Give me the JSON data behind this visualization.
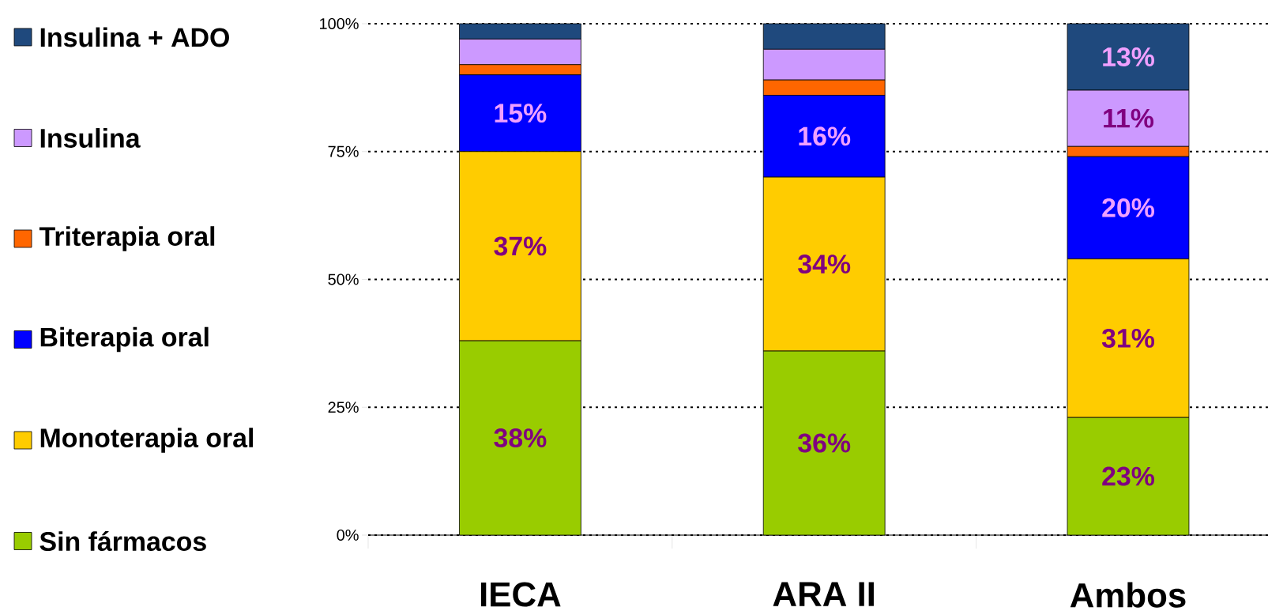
{
  "chart_data": {
    "type": "bar",
    "stacked": true,
    "categories": [
      "IECA",
      "ARA II",
      "Ambos"
    ],
    "series": [
      {
        "name": "Sin fármacos",
        "color": "#99cc00",
        "values": [
          38,
          36,
          23
        ],
        "value_labels": [
          "38%",
          "36%",
          "23%"
        ]
      },
      {
        "name": "Monoterapia oral",
        "color": "#ffcc00",
        "values": [
          37,
          34,
          31
        ],
        "value_labels": [
          "37%",
          "34%",
          "31%"
        ]
      },
      {
        "name": "Biterapia oral",
        "color": "#0000ff",
        "values": [
          15,
          16,
          20
        ],
        "value_labels": [
          "15%",
          "16%",
          "20%"
        ]
      },
      {
        "name": "Triterapia oral",
        "color": "#ff6600",
        "values": [
          2,
          3,
          2
        ],
        "value_labels": [
          null,
          null,
          null
        ]
      },
      {
        "name": "Insulina",
        "color": "#cc99ff",
        "values": [
          5,
          6,
          11
        ],
        "value_labels": [
          null,
          null,
          "11%"
        ]
      },
      {
        "name": "Insulina + ADO",
        "color": "#1f497d",
        "values": [
          3,
          5,
          13
        ],
        "value_labels": [
          null,
          null,
          "13%"
        ]
      }
    ],
    "ylim": [
      0,
      100
    ],
    "yticks": [
      {
        "value": 0,
        "label": "0%"
      },
      {
        "value": 25,
        "label": "25%"
      },
      {
        "value": 50,
        "label": "50%"
      },
      {
        "value": 75,
        "label": "75%"
      },
      {
        "value": 100,
        "label": "100%"
      }
    ],
    "grid": "y",
    "legend": "left"
  }
}
